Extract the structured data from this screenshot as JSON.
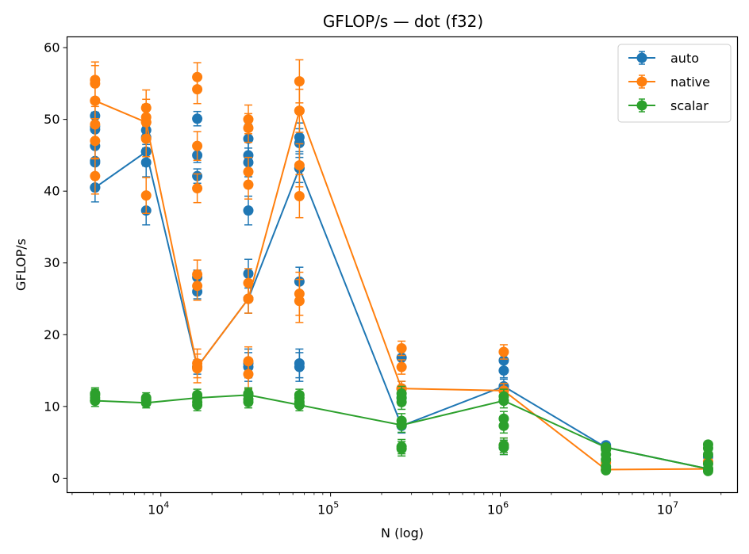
{
  "chart_data": {
    "type": "line",
    "title": "GFLOP/s — dot (f32)",
    "xlabel": "N (log)",
    "ylabel": "GFLOP/s",
    "xscale": "log",
    "xlim": [
      2800,
      25000000
    ],
    "ylim": [
      -2,
      61.5
    ],
    "yticks": [
      0,
      10,
      20,
      30,
      40,
      50,
      60
    ],
    "xticks": [
      {
        "value": 10000,
        "base": "10",
        "exp": "4"
      },
      {
        "value": 100000,
        "base": "10",
        "exp": "5"
      },
      {
        "value": 1000000,
        "base": "10",
        "exp": "6"
      },
      {
        "value": 10000000,
        "base": "10",
        "exp": "7"
      }
    ],
    "grid": false,
    "legend_position": "top-right",
    "series": [
      {
        "name": "auto",
        "color": "#1f77b4",
        "x": [
          4096,
          8192,
          16384,
          32768,
          65536,
          262144,
          1048576,
          4194304,
          16777216
        ],
        "y": [
          40.5,
          45.5,
          15.5,
          25.0,
          43.2,
          7.3,
          12.8,
          4.3,
          1.3
        ],
        "err": [
          2.0,
          2.0,
          1.0,
          2.0,
          2.0,
          1.0,
          1.0,
          0.4,
          0.3
        ],
        "scatter": [
          [
            4096,
            40.5
          ],
          [
            4096,
            44.0
          ],
          [
            4096,
            44.2
          ],
          [
            4096,
            46.3
          ],
          [
            4096,
            48.6
          ],
          [
            4096,
            49.0
          ],
          [
            4096,
            50.5
          ],
          [
            8192,
            37.3
          ],
          [
            8192,
            44.0
          ],
          [
            8192,
            45.5
          ],
          [
            8192,
            47.5
          ],
          [
            8192,
            48.5
          ],
          [
            16384,
            15.5
          ],
          [
            16384,
            26.0
          ],
          [
            16384,
            28.0
          ],
          [
            16384,
            42.1
          ],
          [
            16384,
            45.0
          ],
          [
            16384,
            50.1
          ],
          [
            32768,
            15.5
          ],
          [
            32768,
            16.0
          ],
          [
            32768,
            25.0
          ],
          [
            32768,
            28.5
          ],
          [
            32768,
            37.3
          ],
          [
            32768,
            44.0
          ],
          [
            32768,
            45.0
          ],
          [
            32768,
            47.3
          ],
          [
            65536,
            15.5
          ],
          [
            65536,
            16.0
          ],
          [
            65536,
            27.4
          ],
          [
            65536,
            43.2
          ],
          [
            65536,
            46.7
          ],
          [
            65536,
            47.5
          ],
          [
            262144,
            7.3
          ],
          [
            262144,
            11.2
          ],
          [
            262144,
            12.5
          ],
          [
            262144,
            16.8
          ],
          [
            1048576,
            4.3
          ],
          [
            1048576,
            12.8
          ],
          [
            1048576,
            15.0
          ],
          [
            1048576,
            16.4
          ],
          [
            4194304,
            4.3
          ],
          [
            4194304,
            4.6
          ],
          [
            16777216,
            1.3
          ],
          [
            16777216,
            3.0
          ]
        ]
      },
      {
        "name": "native",
        "color": "#ff7f0e",
        "x": [
          4096,
          8192,
          16384,
          32768,
          65536,
          262144,
          1048576,
          4194304,
          16777216
        ],
        "y": [
          52.6,
          49.6,
          15.5,
          25.0,
          51.2,
          12.5,
          12.2,
          1.2,
          1.3
        ],
        "err": [
          2.5,
          2.5,
          2.0,
          2.0,
          3.0,
          1.0,
          1.0,
          0.3,
          0.3
        ],
        "scatter": [
          [
            4096,
            42.1
          ],
          [
            4096,
            47.0
          ],
          [
            4096,
            49.3
          ],
          [
            4096,
            52.6
          ],
          [
            4096,
            55.0
          ],
          [
            4096,
            55.5
          ],
          [
            8192,
            39.4
          ],
          [
            8192,
            47.3
          ],
          [
            8192,
            49.6
          ],
          [
            8192,
            50.3
          ],
          [
            8192,
            51.6
          ],
          [
            16384,
            15.3
          ],
          [
            16384,
            16.0
          ],
          [
            16384,
            26.8
          ],
          [
            16384,
            28.4
          ],
          [
            16384,
            40.4
          ],
          [
            16384,
            46.3
          ],
          [
            16384,
            54.2
          ],
          [
            16384,
            55.9
          ],
          [
            32768,
            14.5
          ],
          [
            32768,
            16.3
          ],
          [
            32768,
            25.0
          ],
          [
            32768,
            27.2
          ],
          [
            32768,
            40.9
          ],
          [
            32768,
            42.7
          ],
          [
            32768,
            48.8
          ],
          [
            32768,
            50.0
          ],
          [
            65536,
            24.7
          ],
          [
            65536,
            25.7
          ],
          [
            65536,
            39.3
          ],
          [
            65536,
            43.6
          ],
          [
            65536,
            51.2
          ],
          [
            65536,
            55.3
          ],
          [
            262144,
            12.5
          ],
          [
            262144,
            15.5
          ],
          [
            262144,
            18.1
          ],
          [
            1048576,
            4.6
          ],
          [
            1048576,
            12.2
          ],
          [
            1048576,
            17.6
          ],
          [
            4194304,
            1.2
          ],
          [
            4194304,
            2.2
          ],
          [
            16777216,
            1.3
          ],
          [
            16777216,
            2.3
          ]
        ]
      },
      {
        "name": "scalar",
        "color": "#2ca02c",
        "x": [
          4096,
          8192,
          16384,
          32768,
          65536,
          262144,
          1048576,
          4194304,
          16777216
        ],
        "y": [
          10.8,
          10.5,
          11.2,
          11.6,
          10.2,
          7.4,
          10.8,
          4.3,
          1.3
        ],
        "err": [
          0.8,
          0.7,
          0.8,
          0.8,
          0.8,
          1.0,
          1.0,
          0.4,
          0.3
        ],
        "scatter": [
          [
            4096,
            10.8
          ],
          [
            4096,
            11.2
          ],
          [
            4096,
            11.6
          ],
          [
            4096,
            11.8
          ],
          [
            8192,
            10.5
          ],
          [
            8192,
            10.9
          ],
          [
            8192,
            11.2
          ],
          [
            16384,
            10.2
          ],
          [
            16384,
            10.6
          ],
          [
            16384,
            11.2
          ],
          [
            16384,
            11.6
          ],
          [
            32768,
            10.6
          ],
          [
            32768,
            11.0
          ],
          [
            32768,
            11.6
          ],
          [
            32768,
            11.8
          ],
          [
            65536,
            10.2
          ],
          [
            65536,
            10.6
          ],
          [
            65536,
            11.2
          ],
          [
            65536,
            11.6
          ],
          [
            262144,
            4.1
          ],
          [
            262144,
            4.4
          ],
          [
            262144,
            7.4
          ],
          [
            262144,
            8.0
          ],
          [
            262144,
            10.6
          ],
          [
            262144,
            11.2
          ],
          [
            262144,
            11.8
          ],
          [
            1048576,
            4.3
          ],
          [
            1048576,
            4.6
          ],
          [
            1048576,
            7.3
          ],
          [
            1048576,
            8.3
          ],
          [
            1048576,
            10.8
          ],
          [
            1048576,
            11.4
          ],
          [
            4194304,
            1.1
          ],
          [
            4194304,
            1.6
          ],
          [
            4194304,
            2.6
          ],
          [
            4194304,
            3.3
          ],
          [
            4194304,
            4.0
          ],
          [
            4194304,
            4.3
          ],
          [
            16777216,
            1.0
          ],
          [
            16777216,
            1.3
          ],
          [
            16777216,
            2.0
          ],
          [
            16777216,
            3.3
          ],
          [
            16777216,
            4.2
          ],
          [
            16777216,
            4.7
          ]
        ]
      }
    ]
  }
}
